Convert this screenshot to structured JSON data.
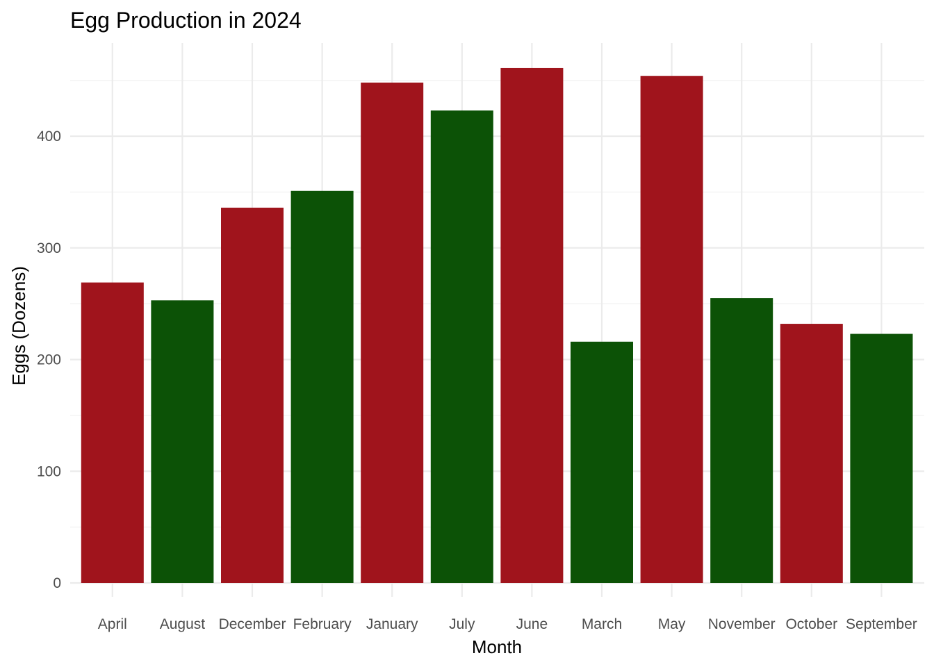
{
  "chart_data": {
    "type": "bar",
    "title": "Egg Production in 2024",
    "xlabel": "Month",
    "ylabel": "Eggs (Dozens)",
    "categories": [
      "April",
      "August",
      "December",
      "February",
      "January",
      "July",
      "June",
      "March",
      "May",
      "November",
      "October",
      "September"
    ],
    "values": [
      269,
      253,
      336,
      351,
      448,
      423,
      461,
      216,
      454,
      255,
      232,
      223
    ],
    "bar_colors": [
      "#a0141c",
      "#0c5206",
      "#a0141c",
      "#0c5206",
      "#a0141c",
      "#0c5206",
      "#a0141c",
      "#0c5206",
      "#a0141c",
      "#0c5206",
      "#a0141c",
      "#0c5206"
    ],
    "colors": {
      "red": "#a0141c",
      "green": "#0c5206",
      "grid": "#ebebeb"
    },
    "ylim": [
      0,
      470
    ],
    "yticks": [
      0,
      100,
      200,
      300,
      400
    ],
    "grid": true,
    "legend": "none"
  }
}
